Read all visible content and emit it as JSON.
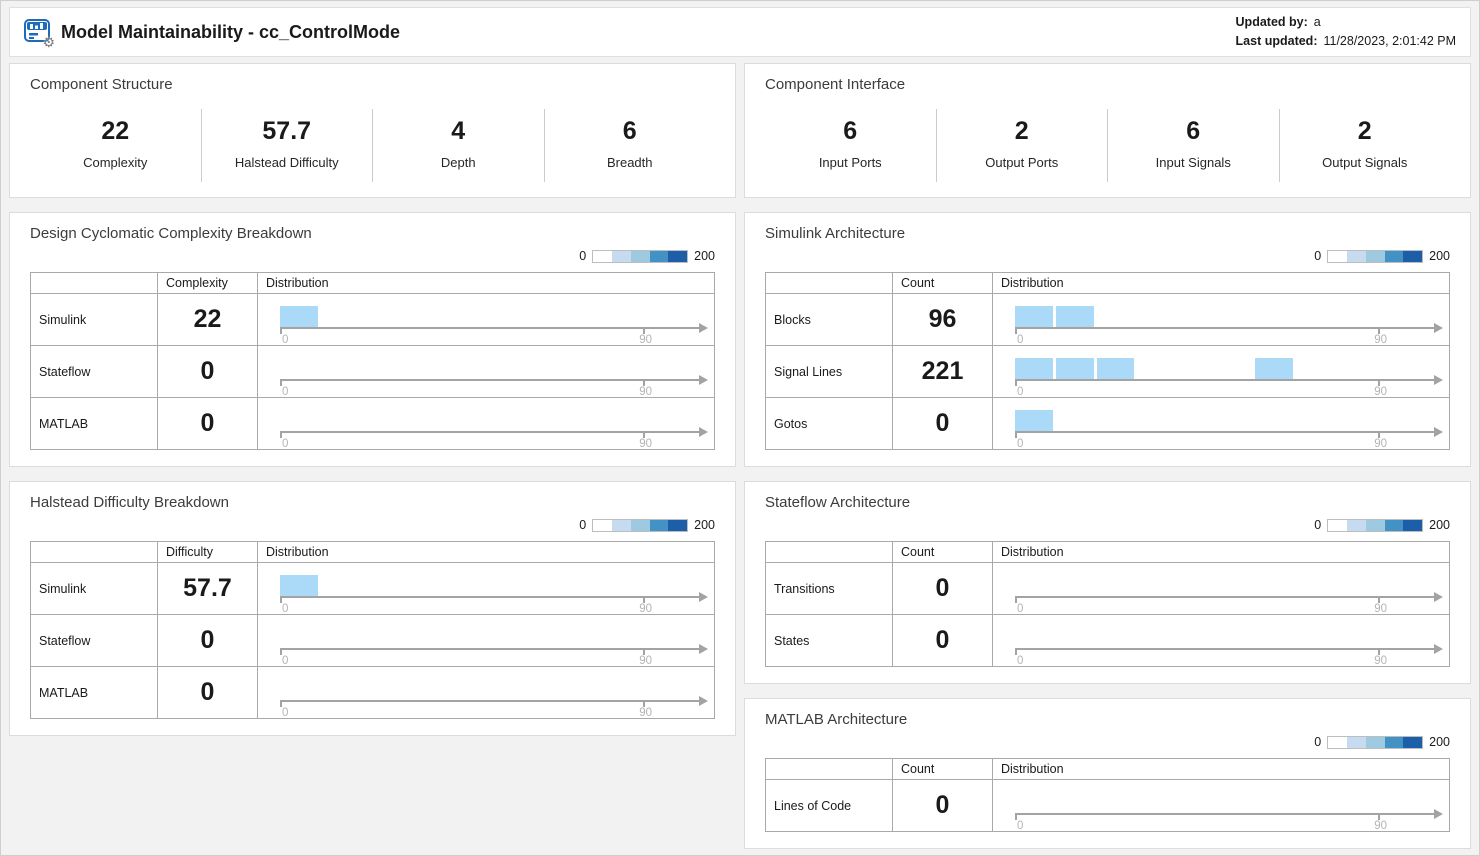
{
  "header": {
    "title": "Model Maintainability - cc_ControlMode",
    "updated_by_label": "Updated by:",
    "updated_by_value": "a",
    "last_updated_label": "Last updated:",
    "last_updated_value": "11/28/2023, 2:01:42 PM",
    "app_icon": "model-metrics-dashboard-icon"
  },
  "colors": {
    "bar_fill": "#aadaf8",
    "axis_gray": "#a3a3a3",
    "legend_colors": [
      "#ffffff",
      "#c6dbef",
      "#9ecae1",
      "#4292c6",
      "#1c5fa8"
    ]
  },
  "legend": {
    "min": "0",
    "max": "200"
  },
  "axis": {
    "label_start": "0",
    "label_end": "90",
    "end_tick_units": 90,
    "total_units": 105.1
  },
  "panels": {
    "component_structure": {
      "title": "Component Structure",
      "metrics": [
        {
          "value": "22",
          "label": "Complexity"
        },
        {
          "value": "57.7",
          "label": "Halstead Difficulty"
        },
        {
          "value": "4",
          "label": "Depth"
        },
        {
          "value": "6",
          "label": "Breadth"
        }
      ]
    },
    "component_interface": {
      "title": "Component Interface",
      "metrics": [
        {
          "value": "6",
          "label": "Input Ports"
        },
        {
          "value": "2",
          "label": "Output Ports"
        },
        {
          "value": "6",
          "label": "Input Signals"
        },
        {
          "value": "2",
          "label": "Output Signals"
        }
      ]
    },
    "complexity_breakdown": {
      "title": "Design Cyclomatic Complexity Breakdown",
      "value_header": "Complexity",
      "dist_header": "Distribution",
      "rows": [
        {
          "label": "Simulink",
          "value": "22",
          "bars": [
            [
              0,
              9.4
            ]
          ]
        },
        {
          "label": "Stateflow",
          "value": "0",
          "bars": []
        },
        {
          "label": "MATLAB",
          "value": "0",
          "bars": []
        }
      ]
    },
    "halstead_breakdown": {
      "title": "Halstead Difficulty Breakdown",
      "value_header": "Difficulty",
      "dist_header": "Distribution",
      "rows": [
        {
          "label": "Simulink",
          "value": "57.7",
          "bars": [
            [
              0,
              9.4
            ]
          ]
        },
        {
          "label": "Stateflow",
          "value": "0",
          "bars": []
        },
        {
          "label": "MATLAB",
          "value": "0",
          "bars": []
        }
      ]
    },
    "simulink_architecture": {
      "title": "Simulink Architecture",
      "value_header": "Count",
      "dist_header": "Distribution",
      "rows": [
        {
          "label": "Blocks",
          "value": "96",
          "bars": [
            [
              0,
              9.4
            ],
            [
              10.2,
              19.5
            ]
          ]
        },
        {
          "label": "Signal Lines",
          "value": "221",
          "bars": [
            [
              0,
              9.4
            ],
            [
              10.2,
              19.5
            ],
            [
              20.3,
              29.5
            ],
            [
              59.4,
              68.8
            ]
          ]
        },
        {
          "label": "Gotos",
          "value": "0",
          "bars": [
            [
              0,
              9.4
            ]
          ]
        }
      ]
    },
    "stateflow_architecture": {
      "title": "Stateflow Architecture",
      "value_header": "Count",
      "dist_header": "Distribution",
      "rows": [
        {
          "label": "Transitions",
          "value": "0",
          "bars": []
        },
        {
          "label": "States",
          "value": "0",
          "bars": []
        }
      ]
    },
    "matlab_architecture": {
      "title": "MATLAB Architecture",
      "value_header": "Count",
      "dist_header": "Distribution",
      "rows": [
        {
          "label": "Lines of Code",
          "value": "0",
          "bars": []
        }
      ]
    }
  }
}
